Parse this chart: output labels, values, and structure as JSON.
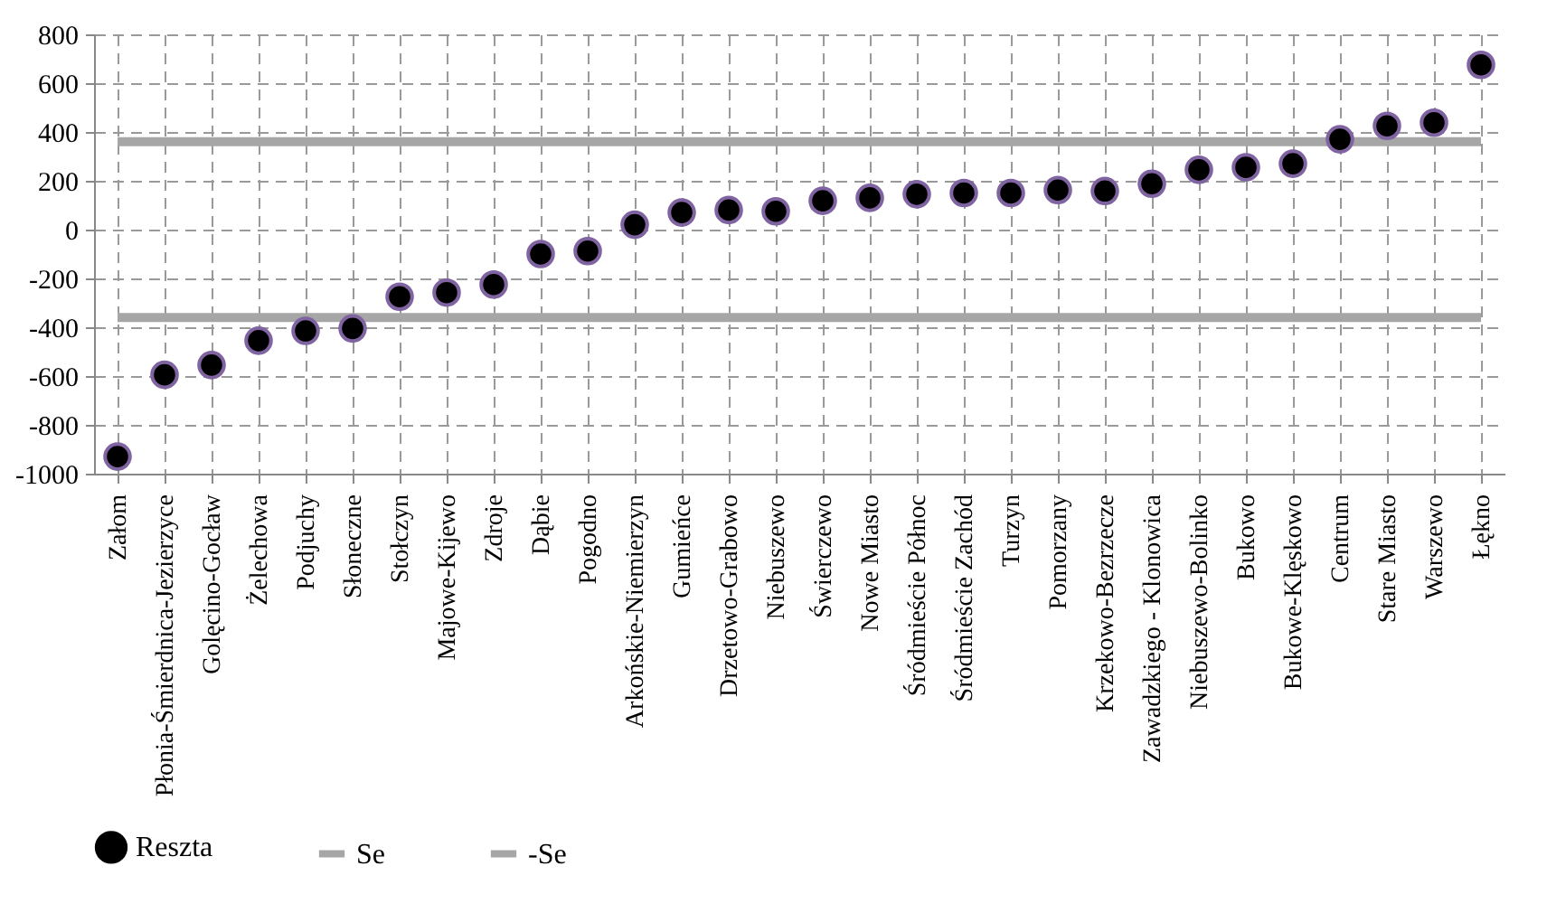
{
  "chart_data": {
    "type": "scatter",
    "categories": [
      "Załom",
      "Płonia-Śmierdnica-Jezierzyce",
      "Golęcino-Gocław",
      "Żelechowa",
      "Podjuchy",
      "Słoneczne",
      "Stołczyn",
      "Majowe-Kijewo",
      "Zdroje",
      "Dąbie",
      "Pogodno",
      "Arkońskie-Niemierzyn",
      "Gumieńce",
      "Drzetowo-Grabowo",
      "Niebuszewo",
      "Świerczewo",
      "Nowe Miasto",
      "Śródmieście Północ",
      "Śródmieście Zachód",
      "Turzyn",
      "Pomorzany",
      "Krzekowo-Bezrzecze",
      "Zawadzkiego - Klonowica",
      "Niebuszewo-Bolinko",
      "Bukowo",
      "Bukowe-Klęskowo",
      "Centrum",
      "Stare Miasto",
      "Warszewo",
      "Łękno"
    ],
    "series": [
      {
        "name": "Reszta",
        "type": "scatter",
        "marker": "circle",
        "color": "#000000",
        "values": [
          -930,
          -595,
          -555,
          -455,
          -415,
          -405,
          -275,
          -258,
          -225,
          -100,
          -88,
          20,
          70,
          80,
          75,
          118,
          130,
          145,
          150,
          150,
          162,
          158,
          188,
          245,
          255,
          270,
          370,
          425,
          438,
          675
        ]
      },
      {
        "name": "Se",
        "type": "line",
        "marker": "none",
        "color": "#a6a6a6",
        "values": [
          360,
          360,
          360,
          360,
          360,
          360,
          360,
          360,
          360,
          360,
          360,
          360,
          360,
          360,
          360,
          360,
          360,
          360,
          360,
          360,
          360,
          360,
          360,
          360,
          360,
          360,
          360,
          360,
          360,
          360
        ]
      },
      {
        "name": "-Se",
        "type": "line",
        "marker": "none",
        "color": "#a6a6a6",
        "values": [
          -360,
          -360,
          -360,
          -360,
          -360,
          -360,
          -360,
          -360,
          -360,
          -360,
          -360,
          -360,
          -360,
          -360,
          -360,
          -360,
          -360,
          -360,
          -360,
          -360,
          -360,
          -360,
          -360,
          -360,
          -360,
          -360,
          -360,
          -360,
          -360,
          -360
        ]
      }
    ],
    "ylim": [
      -1000,
      800
    ],
    "yticks": [
      -1000,
      -800,
      -600,
      -400,
      -200,
      0,
      200,
      400,
      600,
      800
    ],
    "grid": true,
    "legend": "bottom"
  }
}
